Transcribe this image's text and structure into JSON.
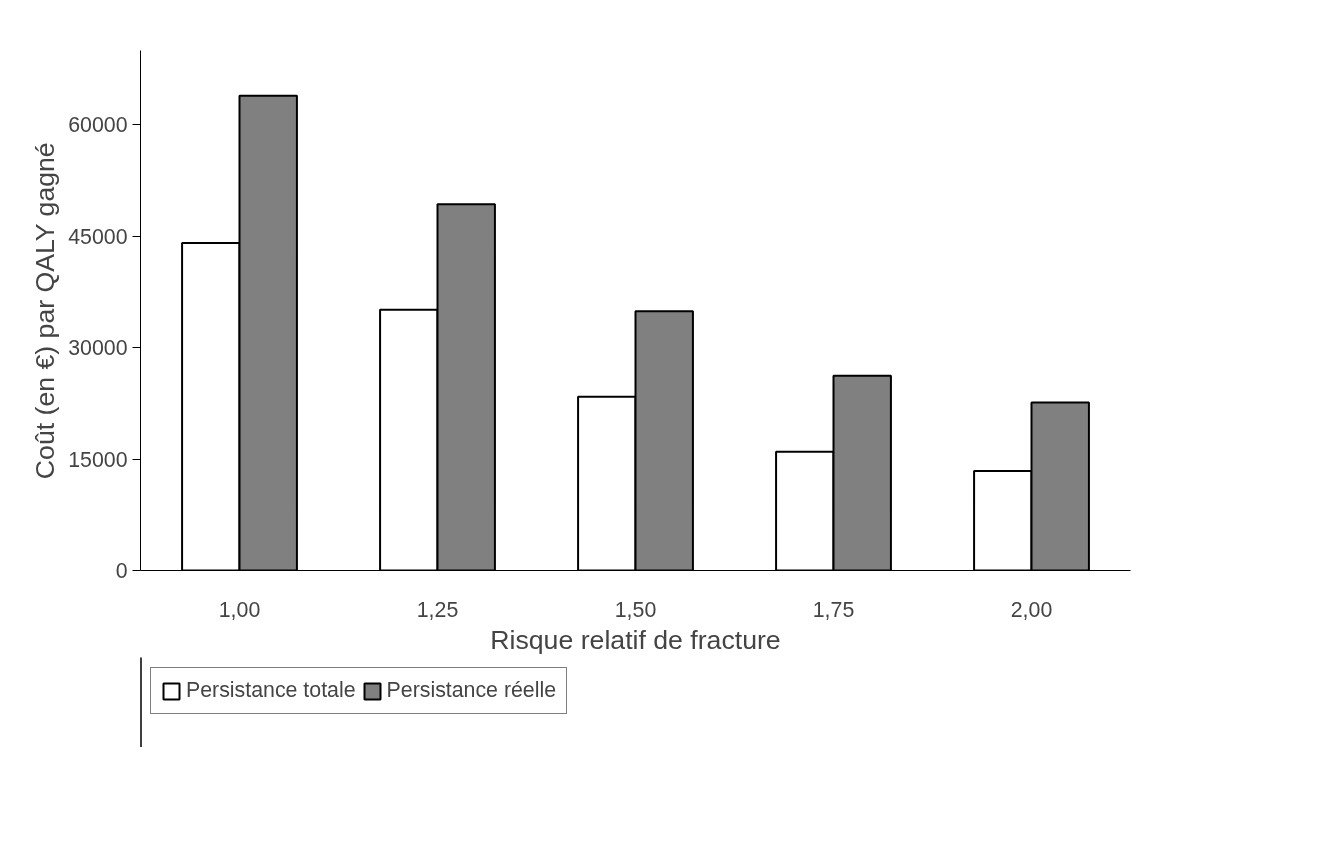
{
  "chart_data": {
    "type": "bar",
    "xlabel": "Risque relatif de fracture",
    "ylabel": "Coût (en €) par QALY gagné",
    "categories": [
      "1,00",
      "1,25",
      "1,50",
      "1,75",
      "2,00"
    ],
    "series": [
      {
        "name": "Persistance totale",
        "color": "#ffffff",
        "values": [
          44100,
          35100,
          23400,
          16000,
          13400
        ]
      },
      {
        "name": "Persistance réelle",
        "color": "#808080",
        "values": [
          63900,
          49300,
          34900,
          26200,
          22600
        ]
      }
    ],
    "ylim": [
      0,
      70000
    ],
    "yticks": [
      0,
      15000,
      30000,
      45000,
      60000
    ],
    "grid": false,
    "legend": "bottom left"
  }
}
